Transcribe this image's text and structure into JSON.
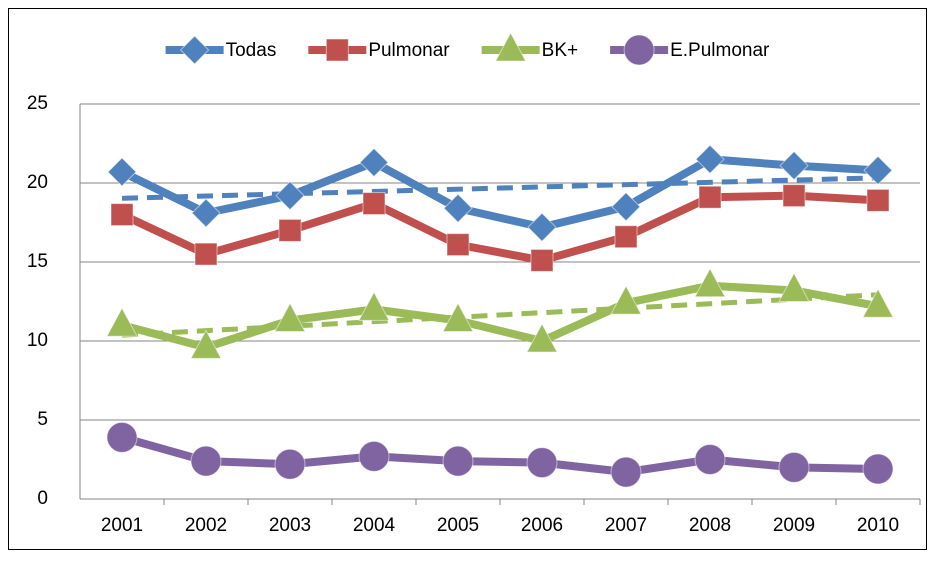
{
  "chart_data": {
    "type": "line",
    "categories": [
      "2001",
      "2002",
      "2003",
      "2004",
      "2005",
      "2006",
      "2007",
      "2008",
      "2009",
      "2010"
    ],
    "series": [
      {
        "name": "Todas",
        "color": "#4f81bd",
        "marker": "diamond",
        "trendline": true,
        "values": [
          20.7,
          18.1,
          19.2,
          21.3,
          18.4,
          17.2,
          18.5,
          21.5,
          21.1,
          20.8
        ]
      },
      {
        "name": "Pulmonar",
        "color": "#c0504d",
        "marker": "square",
        "trendline": false,
        "values": [
          18.0,
          15.5,
          17.0,
          18.7,
          16.1,
          15.1,
          16.6,
          19.1,
          19.2,
          18.9
        ]
      },
      {
        "name": "BK+",
        "color": "#9bbb59",
        "marker": "triangle",
        "trendline": true,
        "values": [
          11.0,
          9.6,
          11.3,
          12.0,
          11.3,
          10.0,
          12.4,
          13.5,
          13.2,
          12.2
        ]
      },
      {
        "name": "E.Pulmonar",
        "color": "#8064a2",
        "marker": "circle",
        "trendline": false,
        "values": [
          3.9,
          2.4,
          2.2,
          2.7,
          2.4,
          2.3,
          1.7,
          2.5,
          2.0,
          1.9
        ]
      }
    ],
    "ylim": [
      0,
      25
    ],
    "yticks": [
      0,
      5,
      10,
      15,
      20,
      25
    ],
    "grid": true,
    "legend": "top"
  }
}
